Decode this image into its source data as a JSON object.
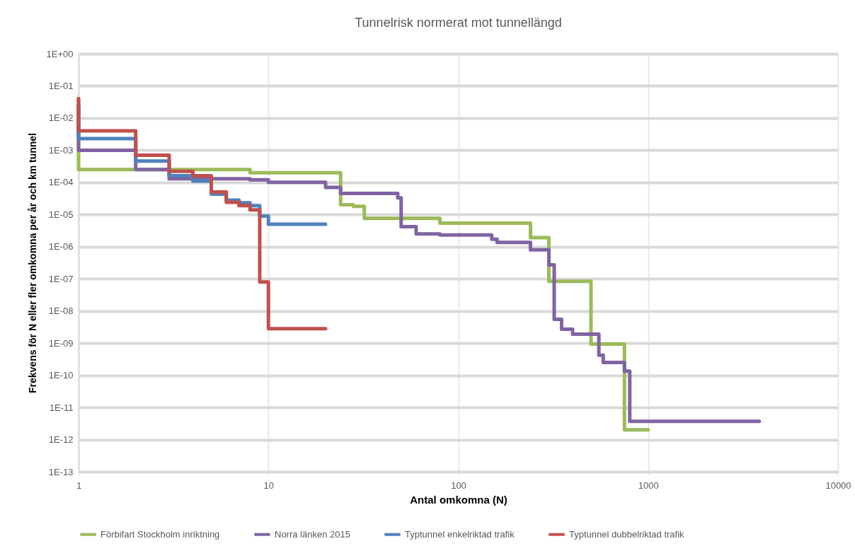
{
  "chart_data": {
    "type": "step",
    "title": "Tunnelrisk normerat mot tunnellängd",
    "xlabel": "Antal omkomna (N)",
    "ylabel": "Frekvens för N eller fler omkomna per år och km tunnel",
    "log": "xy",
    "grid": true,
    "legend": "bottom",
    "xlim": [
      1,
      10000
    ],
    "xticks": [
      1,
      10,
      100,
      1000,
      10000
    ],
    "ylim": [
      1e-13,
      1
    ],
    "yticks": [
      {
        "value": 1,
        "label": "1E+00"
      },
      {
        "value": 0.1,
        "label": "1E-01"
      },
      {
        "value": 0.01,
        "label": "1E-02"
      },
      {
        "value": 0.001,
        "label": "1E-03"
      },
      {
        "value": 0.0001,
        "label": "1E-04"
      },
      {
        "value": 1e-05,
        "label": "1E-05"
      },
      {
        "value": 1e-06,
        "label": "1E-06"
      },
      {
        "value": 1e-07,
        "label": "1E-07"
      },
      {
        "value": 1e-08,
        "label": "1E-08"
      },
      {
        "value": 1e-09,
        "label": "1E-09"
      },
      {
        "value": 1e-10,
        "label": "1E-10"
      },
      {
        "value": 1e-11,
        "label": "1E-11"
      },
      {
        "value": 1e-12,
        "label": "1E-12"
      },
      {
        "value": 1e-13,
        "label": "1E-13"
      }
    ],
    "series": [
      {
        "name": "Förbifart Stockholm inriktning",
        "color": "#9bbb59",
        "x": [
          1,
          1,
          8,
          24,
          28,
          32,
          80,
          240,
          300,
          500,
          750,
          1000
        ],
        "values": [
          0.04,
          0.00025,
          0.0002,
          2e-05,
          1.8e-05,
          7.6e-06,
          5.4e-06,
          1.9e-06,
          8.4e-08,
          9.3e-10,
          2e-12,
          2e-12
        ]
      },
      {
        "name": "Norra länken 2015",
        "color": "#8064a2",
        "x": [
          1,
          1,
          2,
          3,
          8,
          10,
          20,
          24,
          48,
          50,
          60,
          80,
          150,
          160,
          240,
          300,
          320,
          350,
          400,
          550,
          580,
          750,
          800,
          3850
        ],
        "values": [
          0.02,
          0.001,
          0.00025,
          0.00013,
          0.00012,
          0.0001,
          7e-05,
          4.5e-05,
          3.3e-05,
          4.2e-06,
          2.5e-06,
          2.3e-06,
          1.7e-06,
          1.35e-06,
          8e-07,
          2.7e-07,
          5.5e-09,
          2.7e-09,
          1.9e-09,
          4.2e-10,
          2.5e-10,
          1.35e-10,
          3.7e-12,
          3.7e-12
        ]
      },
      {
        "name": "Typtunnel enkelriktad trafik",
        "color": "#4f81bd",
        "x": [
          1,
          1,
          2,
          3,
          4,
          5,
          6,
          7,
          8,
          9,
          10,
          20
        ],
        "values": [
          0.025,
          0.0023,
          0.00046,
          0.00016,
          0.00011,
          4.3e-05,
          2.8e-05,
          2.3e-05,
          1.9e-05,
          9e-06,
          5e-06,
          5e-06
        ]
      },
      {
        "name": "Typtunnel dubbelriktad trafik",
        "color": "#c0504d",
        "x": [
          1,
          1,
          2,
          3,
          4,
          5,
          6,
          7,
          8,
          9,
          10,
          20
        ],
        "values": [
          0.04,
          0.004,
          0.0007,
          0.00022,
          0.00016,
          5e-05,
          2.4e-05,
          1.9e-05,
          1.4e-05,
          8e-08,
          2.8e-09,
          2.8e-09
        ]
      }
    ]
  }
}
